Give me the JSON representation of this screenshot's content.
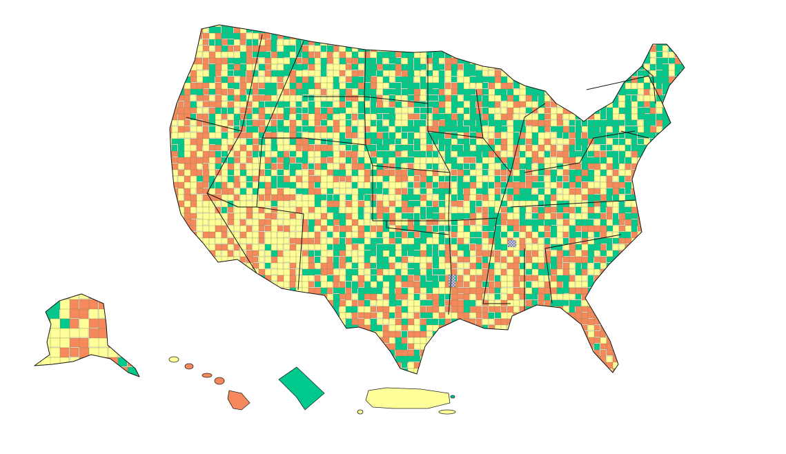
{
  "map": {
    "type": "choropleth",
    "regions": [
      "contiguous-us",
      "alaska",
      "hawaii",
      "district-of-columbia",
      "puerto-rico"
    ],
    "levels": [
      {
        "key": "low",
        "color": "#00c98d"
      },
      {
        "key": "medium",
        "color": "#ffff99"
      },
      {
        "key": "high",
        "color": "#f5895c"
      },
      {
        "key": "no-data",
        "color": "#9fa3b8"
      }
    ],
    "highlight": {
      "dc_level": "low",
      "pr_level": "medium",
      "hi_level": "high"
    }
  }
}
